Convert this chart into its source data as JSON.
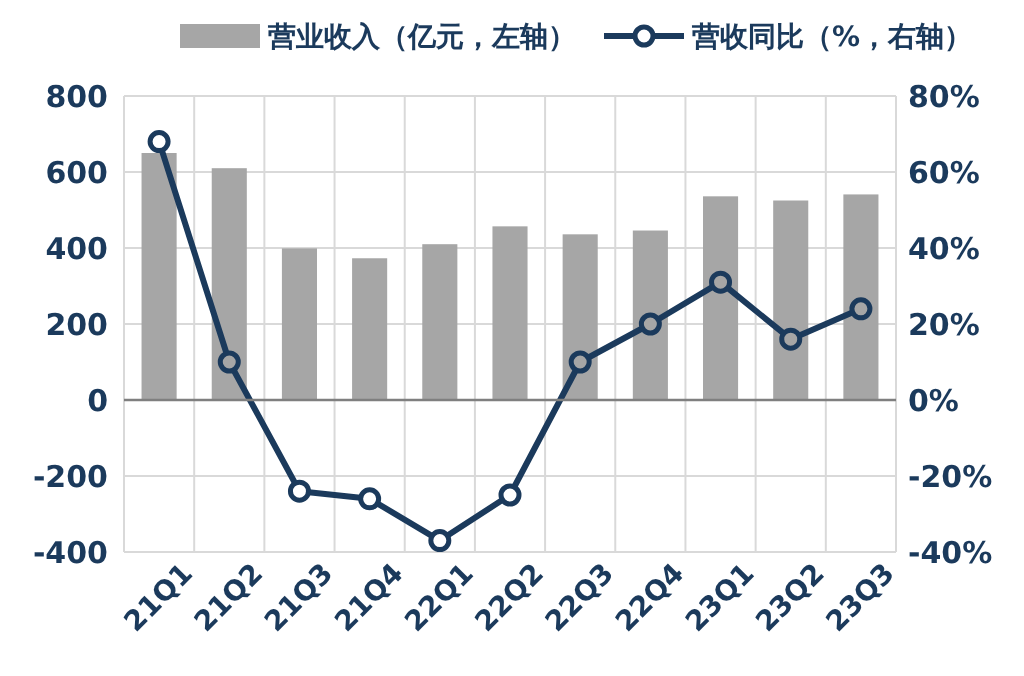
{
  "chart_data": {
    "type": "bar",
    "categories": [
      "21Q1",
      "21Q2",
      "21Q3",
      "21Q4",
      "22Q1",
      "22Q2",
      "22Q3",
      "22Q4",
      "23Q1",
      "23Q2",
      "23Q3"
    ],
    "series": [
      {
        "name": "营业收入（亿元，左轴）",
        "color": "#a6a6a6",
        "values": [
          650,
          610,
          399,
          373,
          410,
          457,
          436,
          446,
          536,
          525,
          541
        ]
      },
      {
        "name": "营收同比（%，右轴）",
        "type": "line",
        "axis": "y2",
        "color": "#1b3a5c",
        "marker": "circle",
        "values": [
          68,
          10,
          -24,
          -26,
          -37,
          -25,
          10,
          20,
          31,
          16,
          24
        ]
      }
    ],
    "ylim": [
      -400,
      800
    ],
    "yticks": [
      -400,
      -200,
      0,
      200,
      400,
      600,
      800
    ],
    "y2lim": [
      -40,
      80
    ],
    "y2ticks": [
      {
        "value": -40,
        "label": "-40%"
      },
      {
        "value": -20,
        "label": "-20%"
      },
      {
        "value": 0,
        "label": "0%"
      },
      {
        "value": 20,
        "label": "20%"
      },
      {
        "value": 40,
        "label": "40%"
      },
      {
        "value": 60,
        "label": "60%"
      },
      {
        "value": 80,
        "label": "80%"
      }
    ],
    "grid": true,
    "legend": "top"
  }
}
